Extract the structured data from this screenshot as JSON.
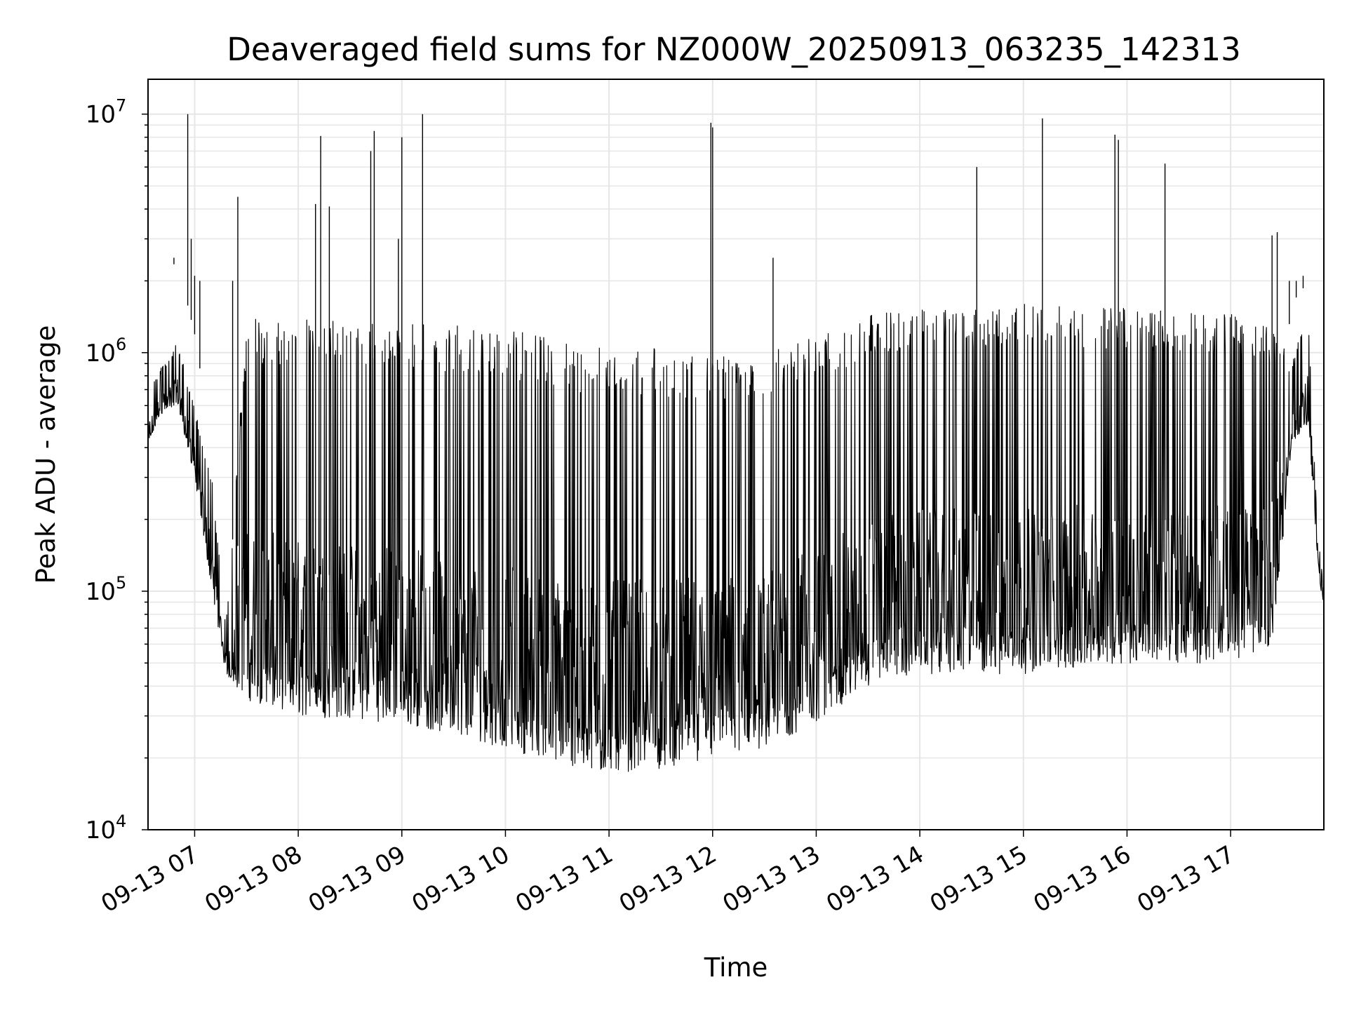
{
  "chart_data": {
    "type": "line",
    "title": "Deaveraged field sums for NZ000W_20250913_063235_142313",
    "xlabel": "Time",
    "ylabel": "Peak ADU - average",
    "yscale": "log",
    "ylim": [
      10000,
      14000000
    ],
    "xlim": [
      "09-13 06:33",
      "09-13 17:54"
    ],
    "grid": true,
    "line_color": "#000000",
    "x_ticks": [
      "09-13 07",
      "09-13 08",
      "09-13 09",
      "09-13 10",
      "09-13 11",
      "09-13 12",
      "09-13 13",
      "09-13 14",
      "09-13 15",
      "09-13 16",
      "09-13 17"
    ],
    "y_ticks": [
      {
        "base": "10",
        "exp": "4",
        "value": 10000
      },
      {
        "base": "10",
        "exp": "5",
        "value": 100000
      },
      {
        "base": "10",
        "exp": "6",
        "value": 1000000
      },
      {
        "base": "10",
        "exp": "7",
        "value": 10000000
      }
    ],
    "series": [
      {
        "note_shape": "dense oscillating trace; envelope listed as time, lower, upper",
        "envelope": [
          [
            "09-13 06:33",
            400000,
            700000
          ],
          [
            "09-13 06:40",
            550000,
            850000
          ],
          [
            "09-13 06:50",
            600000,
            1100000
          ],
          [
            "09-13 07:00",
            300000,
            600000
          ],
          [
            "09-13 07:10",
            100000,
            300000
          ],
          [
            "09-13 07:18",
            45000,
            70000
          ],
          [
            "09-13 07:30",
            35000,
            1400000
          ],
          [
            "09-13 08:00",
            30000,
            1400000
          ],
          [
            "09-13 09:00",
            28000,
            1350000
          ],
          [
            "09-13 10:00",
            22000,
            1250000
          ],
          [
            "09-13 10:50",
            17000,
            1100000
          ],
          [
            "09-13 11:30",
            18000,
            1050000
          ],
          [
            "09-13 12:00",
            20000,
            1000000
          ],
          [
            "09-13 12:30",
            22000,
            1050000
          ],
          [
            "09-13 13:00",
            28000,
            1200000
          ],
          [
            "09-13 13:30",
            40000,
            1450000
          ],
          [
            "09-13 14:00",
            45000,
            1550000
          ],
          [
            "09-13 14:30",
            45000,
            1600000
          ],
          [
            "09-13 15:00",
            45000,
            1600000
          ],
          [
            "09-13 16:00",
            50000,
            1550000
          ],
          [
            "09-13 17:00",
            50000,
            1450000
          ],
          [
            "09-13 17:25",
            60000,
            1300000
          ],
          [
            "09-13 17:35",
            400000,
            900000
          ],
          [
            "09-13 17:45",
            500000,
            1500000
          ],
          [
            "09-13 17:50",
            150000,
            200000
          ],
          [
            "09-13 17:54",
            75000,
            100000
          ]
        ],
        "spikes": [
          [
            "09-13 06:48",
            2500000
          ],
          [
            "09-13 06:56",
            10000000
          ],
          [
            "09-13 06:58",
            3000000
          ],
          [
            "09-13 07:00",
            2100000
          ],
          [
            "09-13 07:03",
            2000000
          ],
          [
            "09-13 07:22",
            2000000
          ],
          [
            "09-13 07:25",
            4500000
          ],
          [
            "09-13 08:10",
            4200000
          ],
          [
            "09-13 08:13",
            8100000
          ],
          [
            "09-13 08:18",
            4100000
          ],
          [
            "09-13 08:42",
            7000000
          ],
          [
            "09-13 08:44",
            8500000
          ],
          [
            "09-13 08:58",
            3000000
          ],
          [
            "09-13 09:00",
            8000000
          ],
          [
            "09-13 09:12",
            10000000
          ],
          [
            "09-13 11:59",
            9200000
          ],
          [
            "09-13 12:00",
            8800000
          ],
          [
            "09-13 12:35",
            2500000
          ],
          [
            "09-13 14:33",
            6000000
          ],
          [
            "09-13 15:11",
            9600000
          ],
          [
            "09-13 15:53",
            8200000
          ],
          [
            "09-13 15:55",
            7800000
          ],
          [
            "09-13 16:22",
            6200000
          ],
          [
            "09-13 17:24",
            3100000
          ],
          [
            "09-13 17:27",
            3200000
          ],
          [
            "09-13 17:34",
            2000000
          ],
          [
            "09-13 17:38",
            2000000
          ],
          [
            "09-13 17:42",
            2100000
          ]
        ]
      }
    ]
  }
}
